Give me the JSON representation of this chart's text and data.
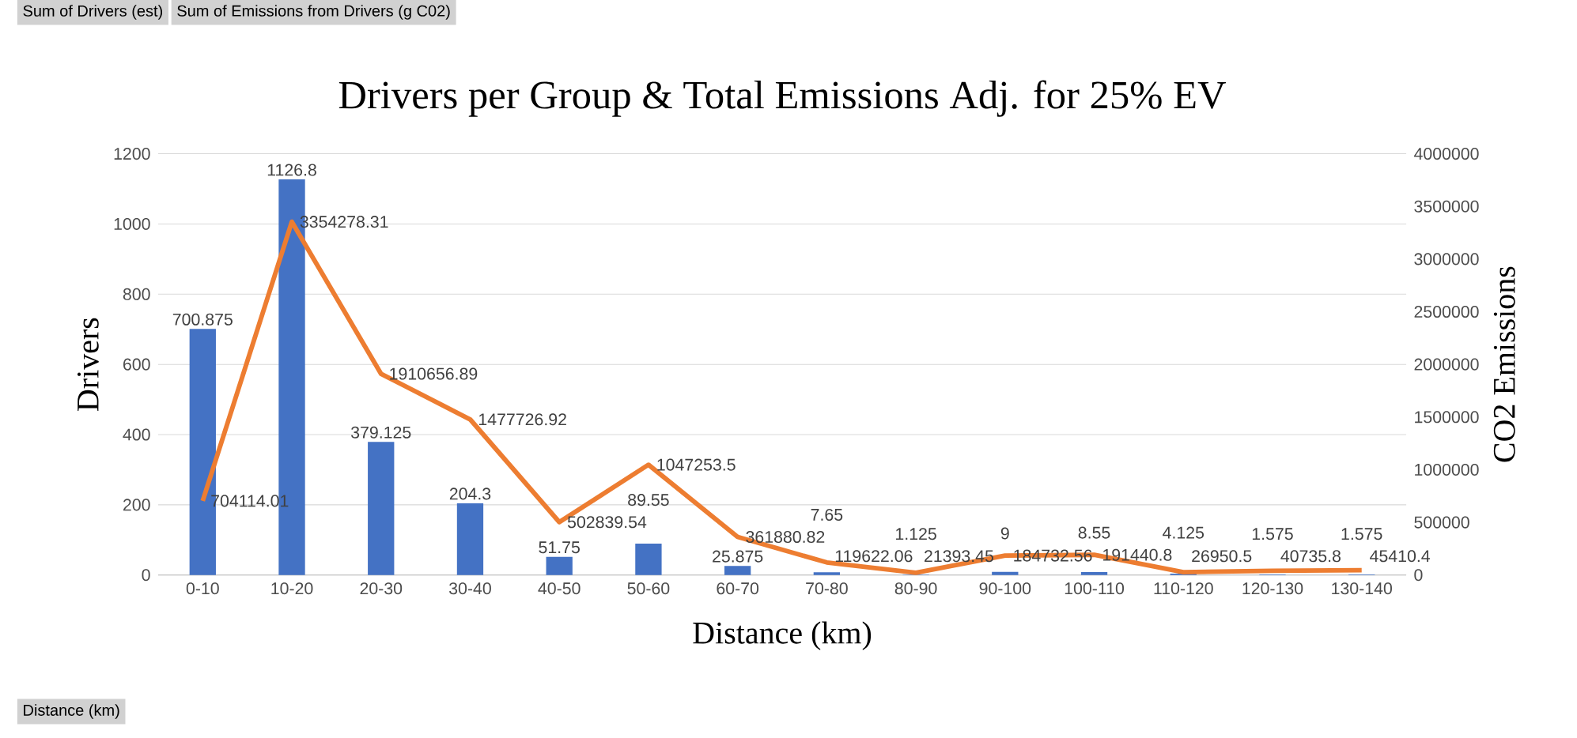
{
  "chart_data": {
    "type": "bar",
    "title": "Drivers per Group & Total Emissions Adj. for 25% EV",
    "xlabel": "Distance (km)",
    "ylabel": "Drivers",
    "y2label": "CO2 Emissions",
    "categories": [
      "0-10",
      "10-20",
      "20-30",
      "30-40",
      "40-50",
      "50-60",
      "60-70",
      "70-80",
      "80-90",
      "90-100",
      "100-110",
      "110-120",
      "120-130",
      "130-140"
    ],
    "series": [
      {
        "color": "#4472c4",
        "values": [
          700.875,
          1126.8,
          379.125,
          204.3,
          51.75,
          89.55,
          25.875,
          7.65,
          1.125,
          9,
          8.55,
          4.125,
          1.575,
          1.575
        ]
      },
      {
        "type": "line",
        "axis": "y2",
        "color": "#ed7d31",
        "values": [
          704114.01,
          3354278.31,
          1910656.89,
          1477726.92,
          502839.54,
          1047253.5,
          361880.82,
          119622.06,
          21393.45,
          184732.56,
          191440.8,
          26950.5,
          40735.8,
          45410.4
        ]
      }
    ],
    "ylim": [
      0,
      1200
    ],
    "yticks": [
      0,
      200,
      400,
      600,
      800,
      1000,
      1200
    ],
    "y2lim": [
      0,
      4000000
    ],
    "y2ticks": [
      0,
      500000,
      1000000,
      1500000,
      2000000,
      2500000,
      3000000,
      3500000,
      4000000
    ],
    "grid": "y",
    "data_labels": true,
    "annotations": [
      "Sum of Drivers (est)",
      "Sum of Emissions from Drivers (g C02)",
      "Distance (km)"
    ]
  }
}
